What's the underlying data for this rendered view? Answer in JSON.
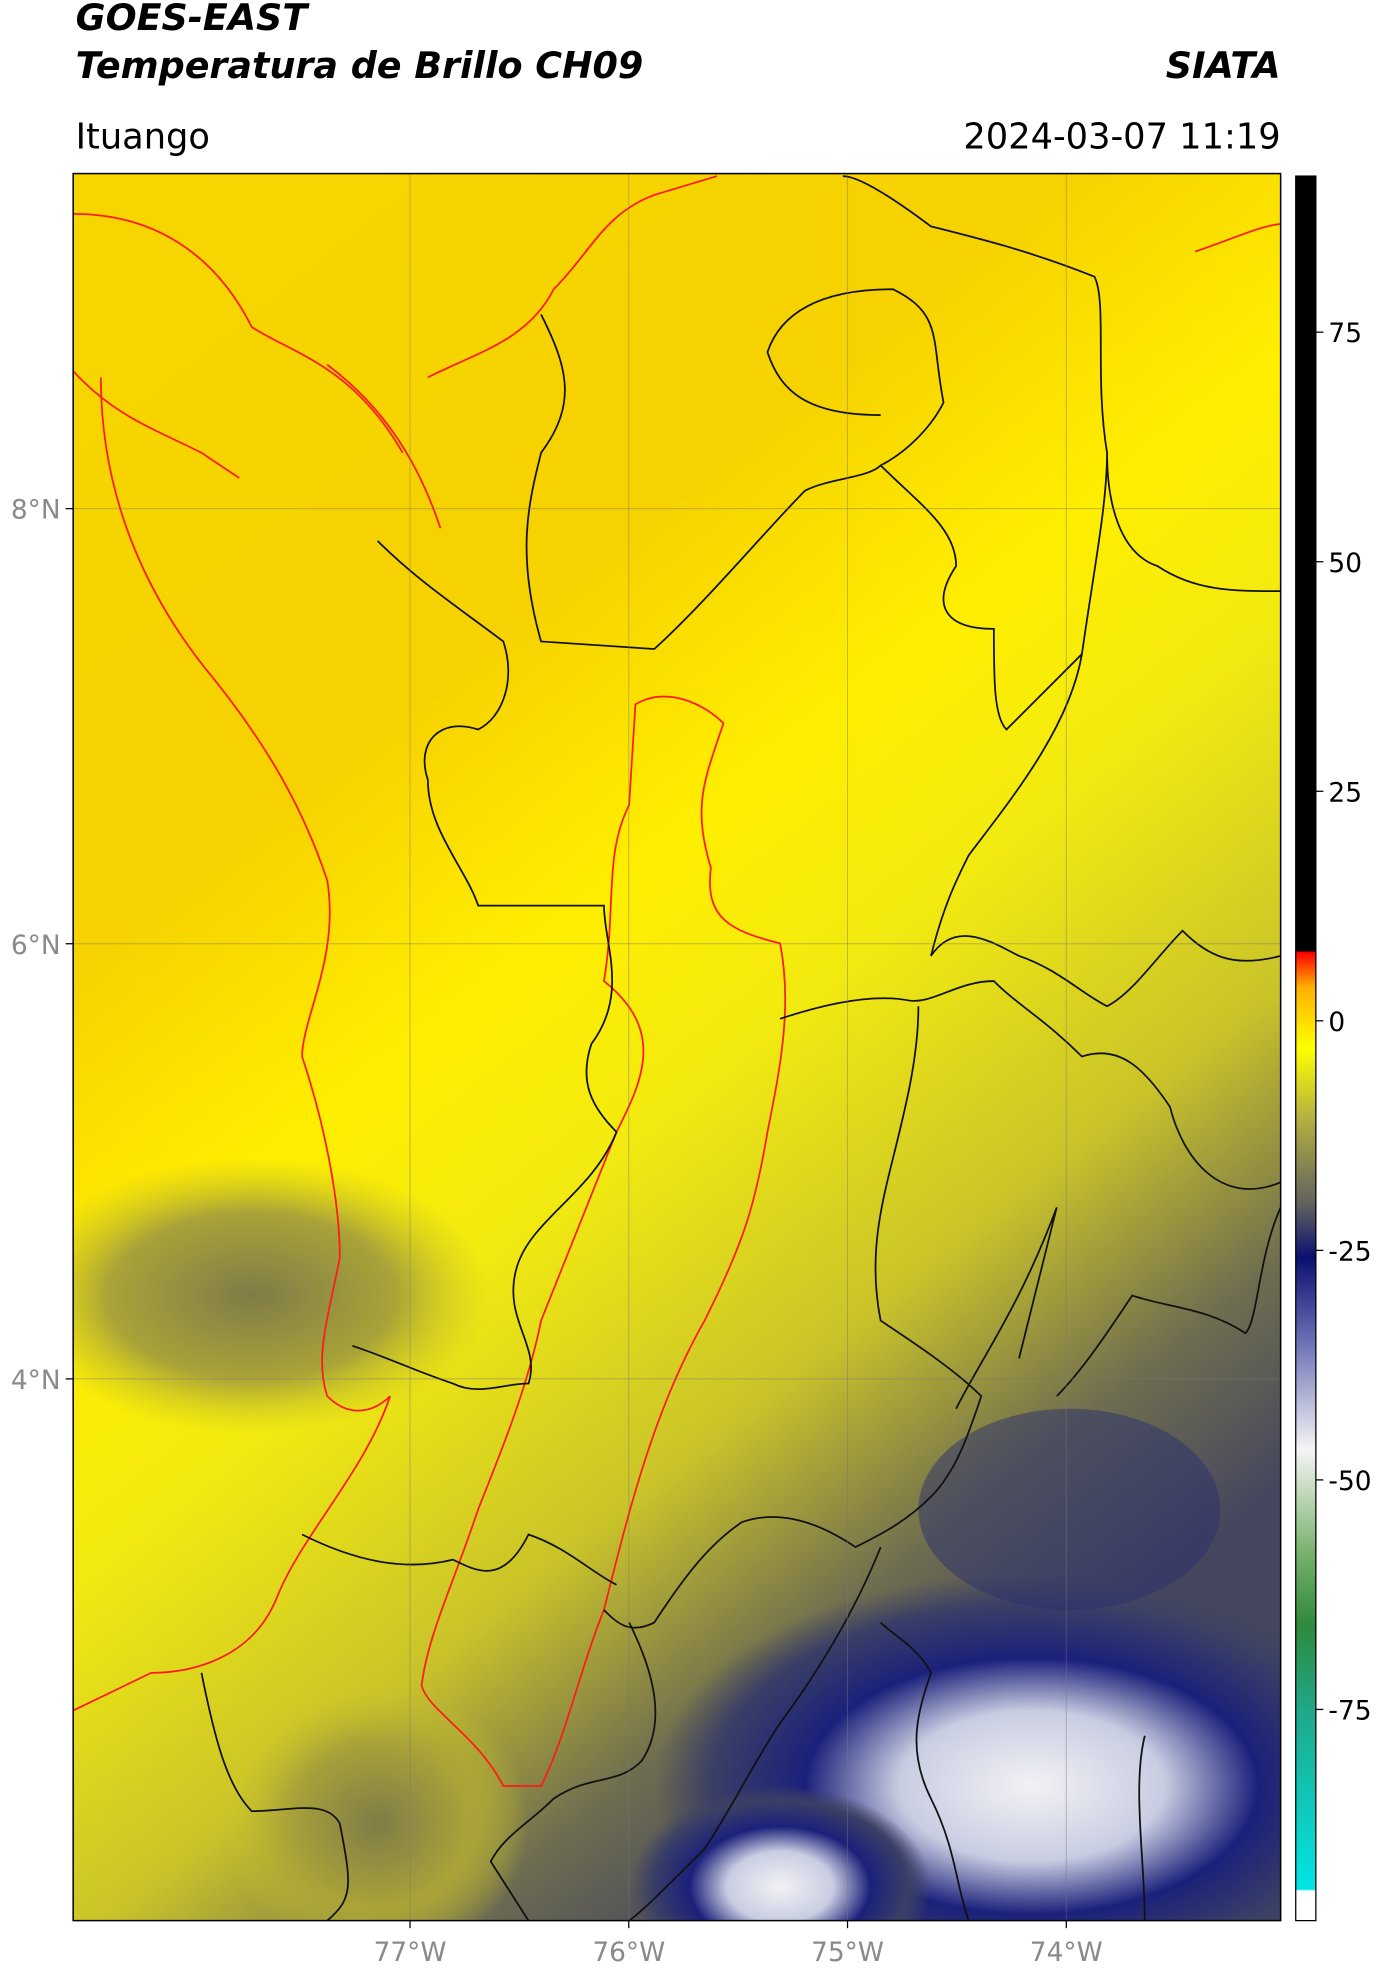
{
  "header": {
    "title": "GOES-EAST",
    "subtitle": "Temperatura de Brillo CH09",
    "source": "SIATA",
    "place": "Ituango",
    "datetime": "2024-03-07 11:19"
  },
  "map": {
    "xlim": [
      -78.54,
      -73.02
    ],
    "ylim": [
      1.51,
      9.54
    ],
    "xticks": [
      {
        "value": -77,
        "label": "77°W"
      },
      {
        "value": -76,
        "label": "76°W"
      },
      {
        "value": -75,
        "label": "75°W"
      },
      {
        "value": -74,
        "label": "74°W"
      }
    ],
    "yticks": [
      {
        "value": 8,
        "label": "8°N"
      },
      {
        "value": 6,
        "label": "6°N"
      },
      {
        "value": 4,
        "label": "4°N"
      }
    ],
    "grid": true
  },
  "colorbar": {
    "ylim": [
      -98,
      92
    ],
    "yticks": [
      75,
      50,
      25,
      0,
      -25,
      -50,
      -75
    ]
  }
}
